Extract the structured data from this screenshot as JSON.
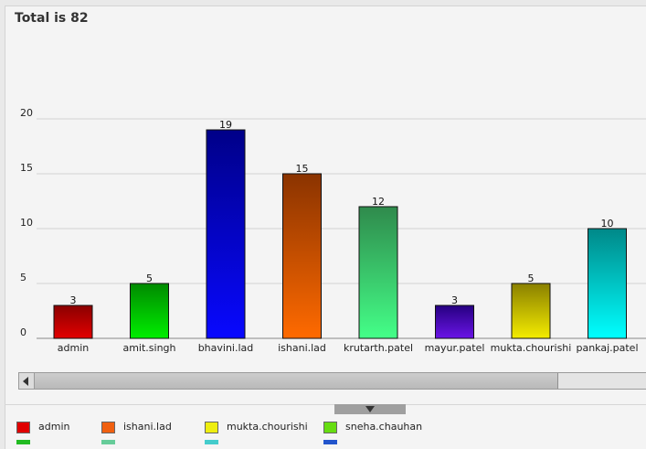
{
  "chart_data": {
    "type": "bar",
    "title": "Total is 82",
    "categories": [
      "admin",
      "amit.singh",
      "bhavini.lad",
      "ishani.lad",
      "krutarth.patel",
      "mayur.patel",
      "mukta.chourishi",
      "pankaj.patel"
    ],
    "values": [
      3,
      5,
      19,
      15,
      12,
      3,
      5,
      10
    ],
    "ylim": [
      0,
      22
    ],
    "yticks": [
      0,
      5,
      10,
      15,
      20
    ],
    "grid": true,
    "bar_colors": [
      [
        "#8a0000",
        "#e30000"
      ],
      [
        "#008a00",
        "#00ee00"
      ],
      [
        "#000088",
        "#0808ff"
      ],
      [
        "#8a3300",
        "#ff6a00"
      ],
      [
        "#2f8a4c",
        "#44ff88"
      ],
      [
        "#260080",
        "#6a14e6"
      ],
      [
        "#8a8000",
        "#f4ec00"
      ],
      [
        "#008888",
        "#00ffff"
      ]
    ]
  },
  "legend": {
    "items": [
      {
        "label": "admin",
        "color": "#e00000"
      },
      {
        "label": "ishani.lad",
        "color": "#f06010"
      },
      {
        "label": "mukta.chourishi",
        "color": "#eeee10"
      },
      {
        "label": "sneha.chauhan",
        "color": "#66dd11"
      }
    ],
    "row2_colors": [
      "#22bb22",
      "#66cc99",
      "#44cccc",
      "#2255cc"
    ]
  }
}
